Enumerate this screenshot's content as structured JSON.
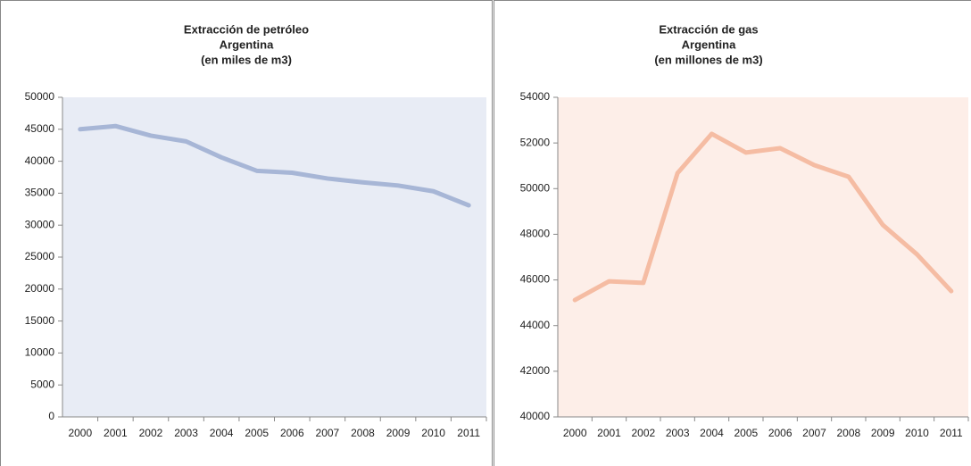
{
  "chart_data": [
    {
      "type": "line",
      "title": [
        "Extracción de petróleo",
        "Argentina",
        "(en miles de m3)"
      ],
      "categories": [
        "2000",
        "2001",
        "2002",
        "2003",
        "2004",
        "2005",
        "2006",
        "2007",
        "2008",
        "2009",
        "2010",
        "2011"
      ],
      "values": [
        45000,
        45500,
        44000,
        43100,
        40600,
        38500,
        38200,
        37300,
        36700,
        36200,
        35300,
        33100
      ],
      "color": "#a7b6d6",
      "background": "#e8ecf5",
      "ylim": [
        0,
        50000
      ],
      "yticks": [
        0,
        5000,
        10000,
        15000,
        20000,
        25000,
        30000,
        35000,
        40000,
        45000,
        50000
      ],
      "grid": false
    },
    {
      "type": "line",
      "title": [
        "Extracción de gas",
        "Argentina",
        "(en millones de m3)"
      ],
      "categories": [
        "2000",
        "2001",
        "2002",
        "2003",
        "2004",
        "2005",
        "2006",
        "2007",
        "2008",
        "2009",
        "2010",
        "2011"
      ],
      "values": [
        45120,
        45940,
        45870,
        50680,
        52400,
        51580,
        51770,
        51030,
        50520,
        48410,
        47120,
        45510
      ],
      "color": "#f5bca3",
      "background": "#fdeee8",
      "ylim": [
        40000,
        54000
      ],
      "yticks": [
        40000,
        42000,
        44000,
        46000,
        48000,
        50000,
        52000,
        54000
      ],
      "grid": false
    }
  ]
}
